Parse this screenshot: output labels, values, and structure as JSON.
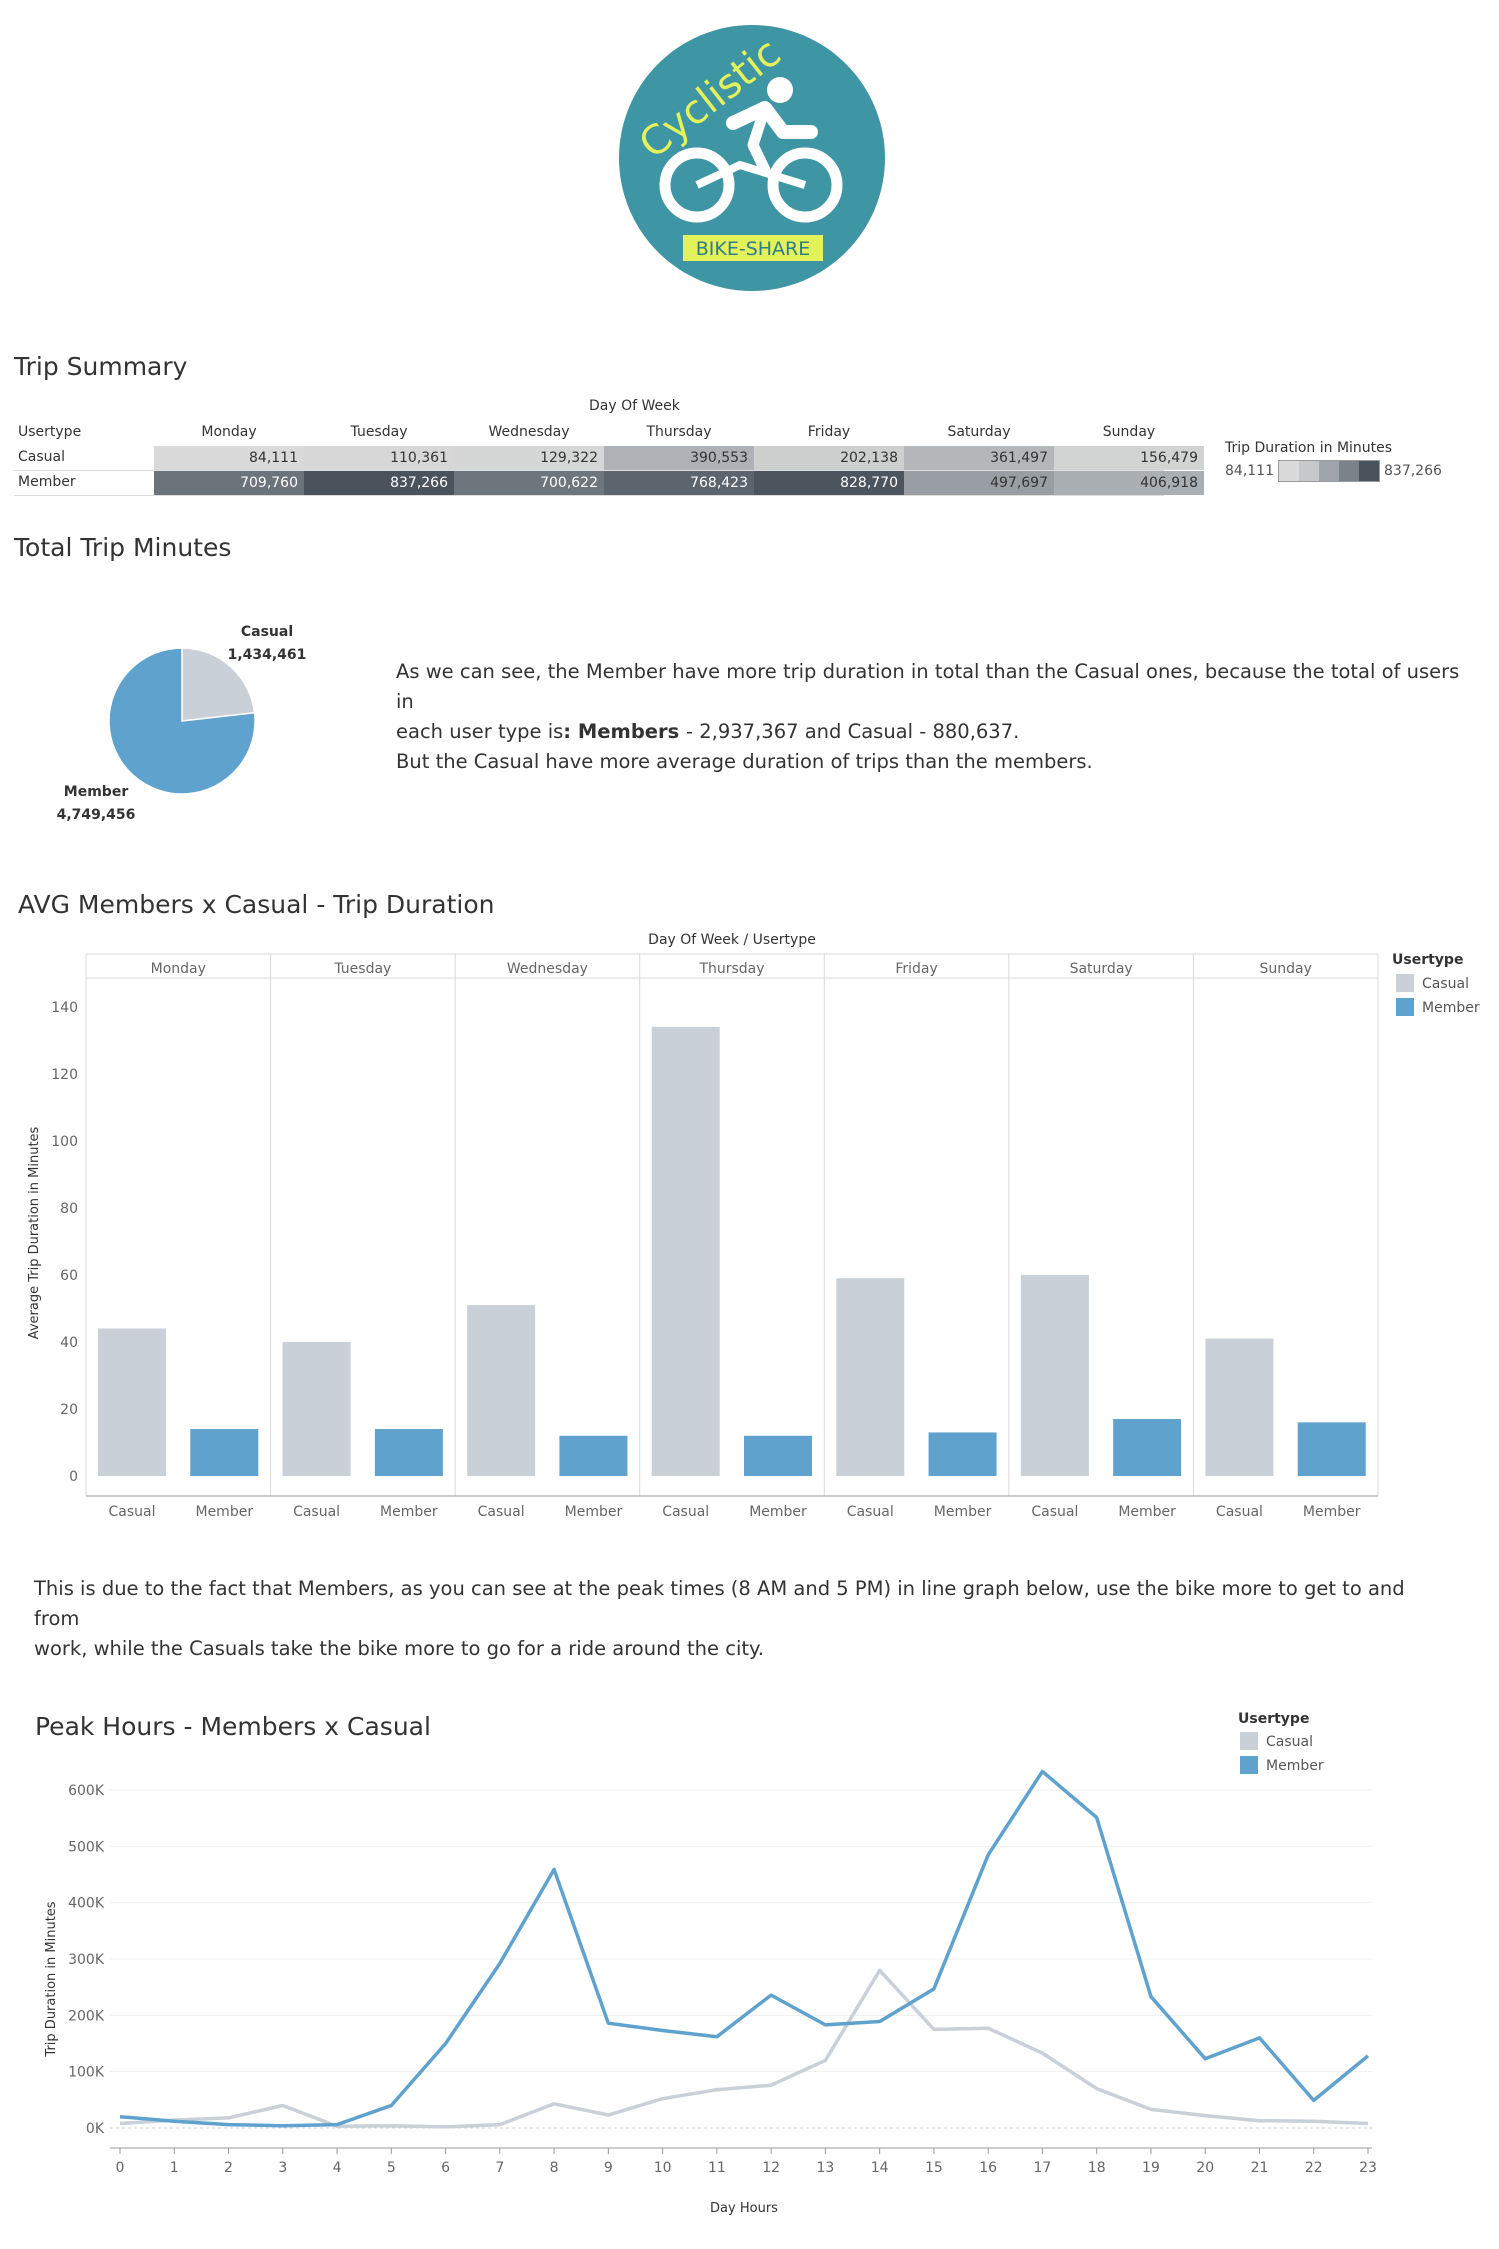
{
  "logo": {
    "word": "Cyclistic",
    "tag": "BIKE-SHARE",
    "bg": "#3E95A4",
    "accent": "#E3F15B"
  },
  "summary": {
    "title": "Trip Summary",
    "col_group_label": "Day Of Week",
    "row_header": "Usertype",
    "days": [
      "Monday",
      "Tuesday",
      "Wednesday",
      "Thursday",
      "Friday",
      "Saturday",
      "Sunday"
    ],
    "rows": [
      {
        "label": "Casual",
        "values": [
          "84,111",
          "110,361",
          "129,322",
          "390,553",
          "202,138",
          "361,497",
          "156,479"
        ]
      },
      {
        "label": "Member",
        "values": [
          "709,760",
          "837,266",
          "700,622",
          "768,423",
          "828,770",
          "497,697",
          "406,918"
        ]
      }
    ],
    "legend": {
      "title": "Trip Duration in Minutes",
      "min": "84,111",
      "max": "837,266"
    }
  },
  "total": {
    "title": "Total Trip Minutes",
    "text_line1": "As we can see, the Member have more trip duration in total than the Casual ones, because the total of users in",
    "text_line2_a": "each user type is",
    "text_line2_b": ": Members ",
    "text_line2_c": "- 2,937,367 and Casual ",
    "text_line2_d": "- 880,637.",
    "text_line3": "But the Casual have more average duration of trips than the members.",
    "casual_label": "Casual",
    "casual_value": "1,434,461",
    "member_label": "Member",
    "member_value": "4,749,456"
  },
  "avg_chart_title": "AVG Members x Casual - Trip Duration",
  "explain_line1": "This is due to the fact that Members, as you can see at the peak times (8 AM and 5 PM) in line graph below, use the bike more to get to and from",
  "explain_line2": "work, while the Casuals take the bike more to go for a ride around the city.",
  "peak_chart_title": "Peak Hours - Members x Casual",
  "chart_data": [
    {
      "type": "pie",
      "labels": [
        "Casual",
        "Member"
      ],
      "values": [
        1434461,
        4749456
      ],
      "colors": [
        "#C9D0D8",
        "#5FA2CE"
      ]
    },
    {
      "type": "bar",
      "title": "AVG Members x Casual - Trip Duration",
      "header": "Day Of Week  /  Usertype",
      "categories": [
        "Monday",
        "Tuesday",
        "Wednesday",
        "Thursday",
        "Friday",
        "Saturday",
        "Sunday"
      ],
      "subcategories": [
        "Casual",
        "Member"
      ],
      "series": [
        {
          "name": "Casual",
          "color": "#C9D0D8",
          "values": [
            44,
            40,
            51,
            134,
            59,
            60,
            41
          ]
        },
        {
          "name": "Member",
          "color": "#5FA2CE",
          "values": [
            14,
            14,
            12,
            12,
            13,
            17,
            16
          ]
        }
      ],
      "ylabel": "Average Trip Duration in Minutes",
      "ylim": [
        0,
        140
      ],
      "yticks": [
        0,
        20,
        40,
        60,
        80,
        100,
        120,
        140
      ],
      "legend_title": "Usertype",
      "legend": "right"
    },
    {
      "type": "line",
      "title": "Peak Hours - Members x Casual",
      "x": [
        0,
        1,
        2,
        3,
        4,
        5,
        6,
        7,
        8,
        9,
        10,
        11,
        12,
        13,
        14,
        15,
        16,
        17,
        18,
        19,
        20,
        21,
        22,
        23
      ],
      "series": [
        {
          "name": "Casual",
          "color": "#C9D0D8",
          "values": [
            8000,
            14000,
            18000,
            40000,
            3000,
            4000,
            2000,
            6000,
            43000,
            23000,
            52000,
            68000,
            76000,
            120000,
            280000,
            175000,
            177000,
            133000,
            70000,
            33000,
            22000,
            13000,
            12000,
            8000
          ]
        },
        {
          "name": "Member",
          "color": "#5FA2CE",
          "values": [
            20000,
            12000,
            6000,
            4000,
            6000,
            40000,
            150000,
            292000,
            459000,
            186000,
            173000,
            162000,
            236000,
            183000,
            189000,
            247000,
            485000,
            633000,
            551000,
            233000,
            123000,
            160000,
            49000,
            128000
          ]
        }
      ],
      "xlabel": "Day Hours",
      "ylabel": "Trip Duration in Minutes",
      "ylim": [
        0,
        640000
      ],
      "yticks": [
        "0K",
        "100K",
        "200K",
        "300K",
        "400K",
        "500K",
        "600K"
      ],
      "legend_title": "Usertype",
      "legend": "top-right"
    }
  ]
}
